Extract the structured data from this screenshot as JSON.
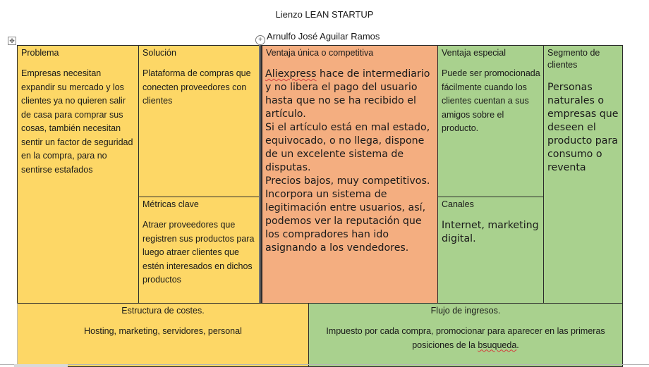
{
  "document": {
    "title": "Lienzo LEAN STARTUP",
    "author": "Arnulfo José Aguilar Ramos"
  },
  "canvas": {
    "problema": {
      "heading": "Problema",
      "text": "Empresas necesitan expandir su mercado y los clientes ya no quieren salir de casa para comprar sus cosas, también necesitan sentir un factor de seguridad en la compra, para no sentirse estafados"
    },
    "solucion": {
      "heading": "Solución",
      "text": "Plataforma de compras que conecten proveedores con clientes"
    },
    "metricas": {
      "heading": "Métricas clave",
      "text": "Atraer proveedores que registren sus productos para luego atraer clientes que estén interesados en dichos productos"
    },
    "ventaja_unica": {
      "heading": "Ventaja única o competitiva",
      "word_flagged": "Aliexpress",
      "text_rest": " hace de intermediario y no libera el pago del usuario hasta que no se ha recibido el artículo.",
      "p2": "Si el artículo está en mal estado, equivocado, o no llega, dispone de un excelente sistema de disputas.",
      "p3": "Precios bajos, muy competitivos.",
      "p4": "Incorpora un sistema de legitimación entre usuarios, así, podemos ver la reputación que los compradores han ido asignando a los vendedores."
    },
    "ventaja_especial": {
      "heading": "Ventaja especial",
      "text": "Puede ser promocionada fácilmente cuando los clientes cuentan a sus amigos sobre el producto."
    },
    "canales": {
      "heading": "Canales",
      "text": "Internet, marketing digital."
    },
    "segmento": {
      "heading": "Segmento de clientes",
      "text": "Personas naturales o empresas que deseen el producto para consumo o reventa"
    },
    "costes": {
      "heading": "Estructura de costes.",
      "text": "Hosting, marketing, servidores, personal"
    },
    "ingresos": {
      "heading": "Flujo de ingresos.",
      "text_start": "Impuesto por cada compra, promocionar para aparecer en las primeras posiciones de la ",
      "word_flagged": "bsuqueda",
      "text_end": "."
    }
  },
  "colors": {
    "yellow": "#fdd766",
    "orange": "#f4ae80",
    "green": "#a9d18e"
  },
  "icons": {
    "table_handle": "move-cross-icon",
    "object_handle": "plus-circle-icon"
  }
}
